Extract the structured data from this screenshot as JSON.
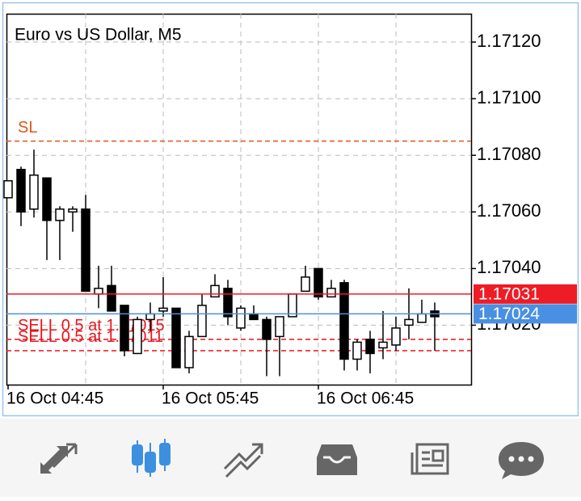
{
  "chart_data": {
    "type": "candlestick",
    "title": "Euro vs US Dollar, M5",
    "categories": [
      "16 Oct 04:45",
      null,
      null,
      null,
      null,
      null,
      null,
      null,
      null,
      null,
      null,
      null,
      "16 Oct 05:45",
      null,
      null,
      null,
      null,
      null,
      null,
      null,
      null,
      null,
      null,
      null,
      "16 Oct 06:45",
      null,
      null,
      null,
      null,
      null,
      null,
      null,
      null,
      null
    ],
    "open": [
      1.17065,
      1.17075,
      1.17061,
      1.17072,
      1.17057,
      1.1706,
      1.17061,
      1.17031,
      1.17034,
      1.17027,
      1.1701,
      1.17022,
      1.17025,
      1.17026,
      1.17005,
      1.17016,
      1.1703,
      1.17033,
      1.17019,
      1.17024,
      1.17022,
      1.17016,
      1.17023,
      1.17032,
      1.1704,
      1.1703,
      1.17035,
      1.17008,
      1.17015,
      1.17012,
      1.17013,
      1.1702,
      1.17021,
      1.17025
    ],
    "high": [
      1.17071,
      1.17076,
      1.17082,
      1.17072,
      1.17062,
      1.17062,
      1.17066,
      1.17041,
      1.17041,
      1.17027,
      1.17023,
      1.17028,
      1.17037,
      1.17026,
      1.17018,
      1.17031,
      1.17038,
      1.17036,
      1.17027,
      1.17027,
      1.17023,
      1.17023,
      1.17031,
      1.17041,
      1.1704,
      1.17036,
      1.17036,
      1.17015,
      1.17018,
      1.17025,
      1.17023,
      1.17033,
      1.17029,
      1.17028
    ],
    "low": [
      1.17065,
      1.17055,
      1.17058,
      1.17043,
      1.17043,
      1.17053,
      1.17032,
      1.17026,
      1.17025,
      1.17009,
      1.1701,
      1.17018,
      1.17023,
      1.17005,
      1.17003,
      1.17016,
      1.1703,
      1.1702,
      1.17018,
      1.17022,
      1.17002,
      1.17002,
      1.17023,
      1.17032,
      1.17029,
      1.1703,
      1.17004,
      1.17004,
      1.17003,
      1.17008,
      1.17011,
      1.17015,
      1.17021,
      1.17011
    ],
    "close": [
      1.17071,
      1.1706,
      1.17073,
      1.17057,
      1.17061,
      1.17061,
      1.17032,
      1.17033,
      1.17025,
      1.17011,
      1.17022,
      1.17024,
      1.17026,
      1.17005,
      1.17016,
      1.17027,
      1.17034,
      1.17023,
      1.17026,
      1.17022,
      1.17015,
      1.17023,
      1.17031,
      1.17037,
      1.1703,
      1.17033,
      1.17008,
      1.17014,
      1.1701,
      1.17014,
      1.17019,
      1.17022,
      1.17024,
      1.17023
    ],
    "up_color": "#ffffff",
    "down_color": "#000000",
    "ylim": [
      1.16999,
      1.1713
    ],
    "yticks": [
      {
        "value": 1.1712,
        "label": "1.17120"
      },
      {
        "value": 1.171,
        "label": "1.17100"
      },
      {
        "value": 1.1708,
        "label": "1.17080"
      },
      {
        "value": 1.1706,
        "label": "1.17060"
      },
      {
        "value": 1.1704,
        "label": "1.17040"
      },
      {
        "value": 1.1702,
        "label": "1.17020"
      }
    ],
    "grid": true,
    "orders": [
      {
        "label": "SL",
        "value": 1.17085,
        "color": "#e0561c"
      },
      {
        "label": "SELL 0.5 at 1.17015",
        "value": 1.17015,
        "color": "#e8141c"
      },
      {
        "label": "SELL 0.5 at 1.17011",
        "value": 1.17011,
        "color": "#e8141c"
      }
    ],
    "price_lines": [
      {
        "value": 1.17031,
        "color": "#ee1c25"
      },
      {
        "value": 1.17024,
        "color": "#4a90e2"
      }
    ]
  }
}
